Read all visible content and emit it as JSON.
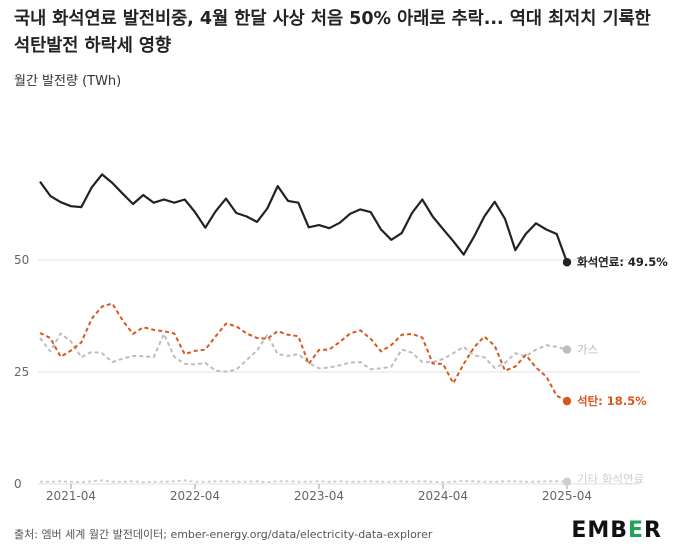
{
  "title": "국내 화석연료 발전비중, 4월 한달 사상 처음 50% 아래로 추락... 역대 최저치 기록한 석탄발전 하락세 영향",
  "subtitle": "월간 발전량 (TWh)",
  "source": "출처: 엠버 세계 월간 발전데이터; ember-energy.org/data/electricity-data-explorer",
  "logo": {
    "pre": "EMB",
    "accent": "E",
    "post": "R",
    "accent_color": "#1fa35a"
  },
  "chart_data": {
    "type": "line",
    "ylabel": "",
    "ylim": [
      0,
      75
    ],
    "yticks": [
      0,
      25,
      50
    ],
    "xticks": [
      "2021-04",
      "2022-04",
      "2023-04",
      "2024-04",
      "2025-04"
    ],
    "xtick_index": [
      3,
      15,
      27,
      39,
      51
    ],
    "n_points": 52,
    "x_start": "2021-01",
    "series": [
      {
        "name": "화석연료",
        "end_label": "화석연료: 49.5%",
        "color": "#222222",
        "dash": "",
        "values": [
          67.5,
          64.3,
          62.9,
          62.0,
          61.8,
          66.2,
          69.1,
          67.2,
          64.8,
          62.5,
          64.5,
          62.8,
          63.5,
          62.8,
          63.5,
          60.7,
          57.2,
          60.9,
          63.7,
          60.5,
          59.7,
          58.5,
          61.5,
          66.5,
          63.2,
          62.8,
          57.3,
          57.8,
          57.1,
          58.3,
          60.3,
          61.3,
          60.7,
          56.8,
          54.5,
          56.0,
          60.5,
          63.5,
          59.7,
          56.9,
          54.2,
          51.2,
          55.2,
          59.7,
          63.0,
          59.2,
          52.2,
          55.8,
          58.2,
          56.8,
          55.8,
          49.5
        ]
      },
      {
        "name": "석탄",
        "end_label": "석탄: 18.5%",
        "color": "#d9571e",
        "dash": "4,3",
        "values": [
          33.7,
          32.6,
          28.4,
          29.8,
          31.6,
          36.9,
          39.6,
          40.3,
          36.5,
          33.5,
          35.0,
          34.4,
          34.1,
          33.6,
          29.0,
          29.7,
          30.0,
          33.0,
          35.8,
          35.2,
          33.6,
          32.6,
          32.4,
          34.1,
          33.3,
          33.0,
          26.8,
          29.9,
          30.0,
          31.7,
          33.6,
          34.3,
          32.4,
          29.6,
          31.0,
          33.3,
          33.5,
          32.7,
          26.9,
          26.8,
          22.5,
          26.8,
          30.5,
          32.9,
          30.9,
          25.3,
          26.2,
          28.8,
          26.0,
          24.0,
          19.7,
          18.5
        ]
      },
      {
        "name": "가스",
        "end_label": "가스",
        "color": "#bdbdbd",
        "dash": "4,3",
        "values": [
          32.6,
          29.6,
          33.6,
          31.8,
          28.3,
          29.5,
          29.2,
          27.2,
          28.0,
          28.6,
          28.5,
          28.3,
          33.5,
          28.4,
          26.8,
          26.7,
          27.0,
          25.3,
          25.1,
          25.5,
          27.7,
          29.8,
          33.3,
          29.0,
          28.6,
          29.0,
          27.0,
          25.8,
          26.0,
          26.5,
          27.1,
          27.2,
          25.6,
          25.8,
          26.2,
          30.0,
          29.3,
          27.2,
          27.2,
          27.9,
          29.2,
          30.6,
          28.7,
          28.3,
          25.9,
          27.0,
          29.2,
          28.5,
          30.0,
          31.0,
          30.6,
          30.0
        ]
      },
      {
        "name": "기타 화석연료",
        "end_label": "기타 화석연료",
        "color": "#cfcfcf",
        "dash": "3,3",
        "values": [
          0.5,
          0.5,
          0.6,
          0.5,
          0.4,
          0.6,
          0.8,
          0.5,
          0.5,
          0.6,
          0.4,
          0.5,
          0.5,
          0.6,
          0.8,
          0.5,
          0.5,
          0.6,
          0.6,
          0.5,
          0.5,
          0.6,
          0.4,
          0.6,
          0.6,
          0.5,
          0.5,
          0.6,
          0.5,
          0.6,
          0.5,
          0.5,
          0.6,
          0.5,
          0.5,
          0.6,
          0.5,
          0.6,
          0.5,
          0.4,
          0.5,
          0.7,
          0.6,
          0.5,
          0.5,
          0.6,
          0.6,
          0.5,
          0.5,
          0.6,
          0.6,
          0.5
        ]
      }
    ]
  }
}
